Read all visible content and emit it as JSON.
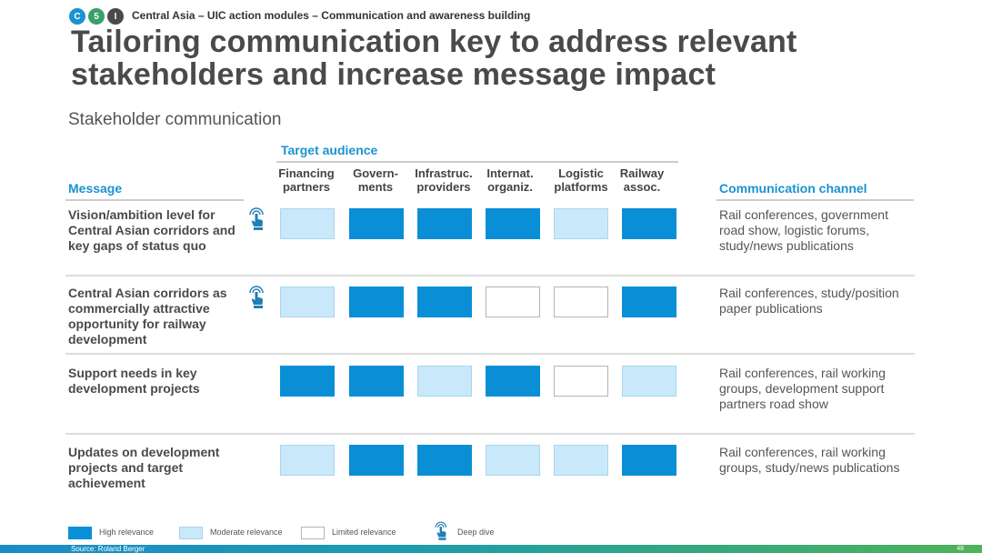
{
  "header": {
    "logo_letters": [
      "C",
      "5",
      "I"
    ],
    "breadcrumb": "Central Asia – UIC action modules – Communication and awareness building",
    "title_line1": "Tailoring communication key to address relevant",
    "title_line2": "stakeholders and increase message impact",
    "subtitle": "Stakeholder communication"
  },
  "table": {
    "target_audience_label": "Target audience",
    "message_label": "Message",
    "channel_label": "Communication channel",
    "columns": [
      {
        "line1": "Financing",
        "line2": "partners"
      },
      {
        "line1": "Govern-",
        "line2": "ments"
      },
      {
        "line1": "Infrastruc.",
        "line2": "providers"
      },
      {
        "line1": "Internat.",
        "line2": "organiz."
      },
      {
        "line1": "Logistic",
        "line2": "platforms"
      },
      {
        "line1": "Railway",
        "line2": "assoc."
      }
    ],
    "rows": [
      {
        "message": "Vision/ambition level for Central Asian corridors and key gaps of status quo",
        "deep_dive": true,
        "relevance": [
          "moderate",
          "high",
          "high",
          "high",
          "moderate",
          "high"
        ],
        "channel": "Rail conferences, government road show, logistic forums, study/news publications"
      },
      {
        "message": "Central Asian corridors as commercially attractive opportunity for railway development",
        "deep_dive": true,
        "relevance": [
          "moderate",
          "high",
          "high",
          "limited",
          "limited",
          "high"
        ],
        "channel": "Rail conferences, study/position paper publications"
      },
      {
        "message": "Support needs in key development projects",
        "deep_dive": false,
        "relevance": [
          "high",
          "high",
          "moderate",
          "high",
          "limited",
          "moderate"
        ],
        "channel": "Rail conferences, rail working groups, development support partners road show"
      },
      {
        "message": "Updates on development projects and target achievement",
        "deep_dive": false,
        "relevance": [
          "moderate",
          "high",
          "high",
          "moderate",
          "moderate",
          "high"
        ],
        "channel": "Rail conferences, rail working groups, study/news publications"
      }
    ]
  },
  "legend": {
    "high": "High relevance",
    "moderate": "Moderate relevance",
    "limited": "Limited relevance",
    "deep_dive": "Deep dive"
  },
  "footer": {
    "source": "Source: Roland Berger",
    "page_number": "48"
  },
  "colors": {
    "high": "#0a8fd6",
    "moderate": "#c9e9fa",
    "limited": "#ffffff",
    "accent": "#1a93d0",
    "logo_c": "#1a93d0",
    "logo_5": "#3aa06a",
    "logo_i": "#4a4a4a"
  }
}
